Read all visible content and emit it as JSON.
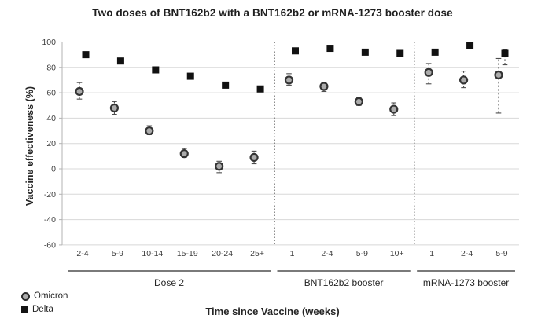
{
  "chart_data": {
    "type": "scatter",
    "title": "Two doses of BNT162b2 with a BNT162b2 or mRNA-1273 booster dose",
    "xlabel": "Time since Vaccine (weeks)",
    "ylabel": "Vaccine effectiveness (%)",
    "ylim": [
      -60,
      100
    ],
    "yticks": [
      100,
      80,
      60,
      40,
      20,
      0,
      -20,
      -40,
      -60
    ],
    "grid": true,
    "legend_position": "bottom-left",
    "series_styles": [
      {
        "name": "Omicron",
        "marker": "circle",
        "fill": "#ababab",
        "stroke": "#333333"
      },
      {
        "name": "Delta",
        "marker": "square",
        "fill": "#111111",
        "stroke": "#111111"
      }
    ],
    "colors": {
      "grid": "#d8d8d8",
      "axis": "#b3b3b3",
      "separator": "#6e6e6e",
      "underline": "#7a7a7a",
      "error": "#4d4d4d",
      "tick_text": "#3f3f3f",
      "group_text": "#262626"
    },
    "groups": [
      {
        "label": "Dose 2",
        "categories": [
          "2-4",
          "5-9",
          "10-14",
          "15-19",
          "20-24",
          "25+"
        ],
        "series": [
          {
            "name": "Omicron",
            "points": [
              {
                "value": 61,
                "ci": [
                  55,
                  68
                ]
              },
              {
                "value": 48,
                "ci": [
                  43,
                  53
                ]
              },
              {
                "value": 30,
                "ci": [
                  27,
                  34
                ]
              },
              {
                "value": 12,
                "ci": [
                  9,
                  16
                ]
              },
              {
                "value": 2,
                "ci": [
                  -3,
                  6
                ]
              },
              {
                "value": 9,
                "ci": [
                  4,
                  14
                ]
              }
            ]
          },
          {
            "name": "Delta",
            "points": [
              {
                "value": 90
              },
              {
                "value": 85
              },
              {
                "value": 78
              },
              {
                "value": 73
              },
              {
                "value": 66
              },
              {
                "value": 63
              }
            ]
          }
        ]
      },
      {
        "label": "BNT162b2 booster",
        "categories": [
          "1",
          "2-4",
          "5-9",
          "10+"
        ],
        "series": [
          {
            "name": "Omicron",
            "points": [
              {
                "value": 70,
                "ci": [
                  66,
                  75
                ]
              },
              {
                "value": 65,
                "ci": [
                  61,
                  68
                ]
              },
              {
                "value": 53,
                "ci": [
                  50,
                  56
                ]
              },
              {
                "value": 47,
                "ci": [
                  42,
                  52
                ]
              }
            ]
          },
          {
            "name": "Delta",
            "points": [
              {
                "value": 93
              },
              {
                "value": 95
              },
              {
                "value": 92
              },
              {
                "value": 91
              }
            ]
          }
        ]
      },
      {
        "label": "mRNA-1273 booster",
        "categories": [
          "1",
          "2-4",
          "5-9"
        ],
        "series": [
          {
            "name": "Omicron",
            "points": [
              {
                "value": 76,
                "ci": [
                  67,
                  83
                ]
              },
              {
                "value": 70,
                "ci": [
                  64,
                  77
                ]
              },
              {
                "value": 74,
                "ci": [
                  44,
                  87
                ]
              }
            ]
          },
          {
            "name": "Delta",
            "points": [
              {
                "value": 92
              },
              {
                "value": 97
              },
              {
                "value": 91,
                "ci": [
                  82,
                  94
                ]
              }
            ]
          }
        ]
      }
    ]
  }
}
